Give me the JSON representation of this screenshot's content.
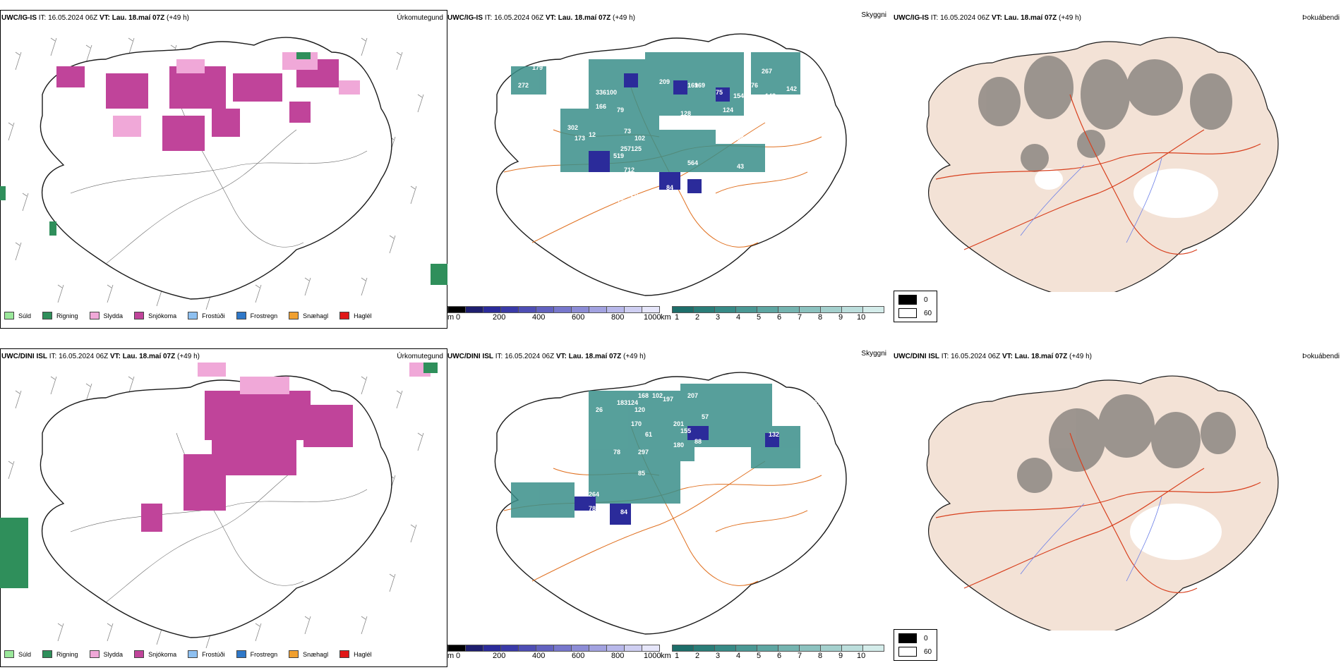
{
  "colors": {
    "precip_frame": "#000000",
    "coast": "#1a1a1a",
    "road_orange": "#e07020",
    "road_red": "#d8401e",
    "river": "#6b7fe8",
    "land_fog": "#f3e2d6",
    "snow": "#c0449a",
    "sleet": "#f0a8d8",
    "rain": "#2f8f5b",
    "ceiling_blue": "#2b2b9a",
    "vis_teal": "#3a8f8a"
  },
  "rows": [
    {
      "model": "UWC/IG-IS",
      "it_label": "IT:",
      "it_value": "16.05.2024 06Z",
      "vt_label": "VT:",
      "vt_value": "Lau. 18.maí 07Z",
      "hours": "(+49 h)",
      "ceiling_numbers": [
        "272",
        "179",
        "383",
        "37",
        "336",
        "100",
        "166",
        "79",
        "209",
        "169",
        "75",
        "154",
        "276",
        "267",
        "142",
        "143",
        "25",
        "373",
        "302",
        "173",
        "12",
        "73",
        "102",
        "125",
        "257",
        "519",
        "564",
        "712",
        "138",
        "12",
        "84",
        "125",
        "20",
        "81",
        "20",
        "124",
        "54",
        "169",
        "128",
        "43",
        "69",
        "78"
      ]
    },
    {
      "model": "UWC/DINI ISL",
      "it_label": "IT:",
      "it_value": "16.05.2024 06Z",
      "vt_label": "VT:",
      "vt_value": "Lau. 18.maí 07Z",
      "hours": "(+49 h)",
      "ceiling_numbers": [
        "168",
        "102",
        "183",
        "124",
        "197",
        "120",
        "207",
        "215",
        "279",
        "170",
        "61",
        "180",
        "88",
        "57",
        "297",
        "78",
        "85",
        "19",
        "84",
        "26",
        "264",
        "78",
        "132",
        "19",
        "12",
        "19",
        "201",
        "155",
        "83"
      ]
    }
  ],
  "panel_titles": {
    "precip": "Úrkomutegund",
    "ceiling": "Skyggni",
    "fog": "Þokuábendi"
  },
  "precip_legend": [
    {
      "label": "Súld",
      "color": "#9be89b"
    },
    {
      "label": "Rigning",
      "color": "#2f8f5b"
    },
    {
      "label": "Slydda",
      "color": "#f0a8d8"
    },
    {
      "label": "Snjókoma",
      "color": "#c0449a"
    },
    {
      "label": "Frostúði",
      "color": "#8ec0f0"
    },
    {
      "label": "Frostregn",
      "color": "#2f78c8"
    },
    {
      "label": "Snæhagl",
      "color": "#f0a030"
    },
    {
      "label": "Haglél",
      "color": "#e01818"
    }
  ],
  "ceiling_scale": {
    "unit": "m",
    "labels": [
      "0",
      "200",
      "400",
      "600",
      "800",
      "1000"
    ],
    "colors": [
      "#000000",
      "#1e1e6e",
      "#2b2b9a",
      "#3a3aa8",
      "#4e4eb4",
      "#6262c0",
      "#7777cc",
      "#8c8cd6",
      "#a2a2e0",
      "#b8b8ea",
      "#cfcff2",
      "#e6e6fa"
    ]
  },
  "vis_scale": {
    "unit": "km",
    "labels": [
      "1",
      "2",
      "3",
      "4",
      "5",
      "6",
      "7",
      "8",
      "9",
      "10"
    ],
    "colors": [
      "#1d6e6a",
      "#2a7d78",
      "#378a86",
      "#4a9894",
      "#5ea6a2",
      "#75b4b0",
      "#8cc2bf",
      "#a4d0cd",
      "#bcdedc",
      "#d4ecea"
    ]
  },
  "fog_key": {
    "top_label": "0",
    "bottom_label": "60"
  }
}
